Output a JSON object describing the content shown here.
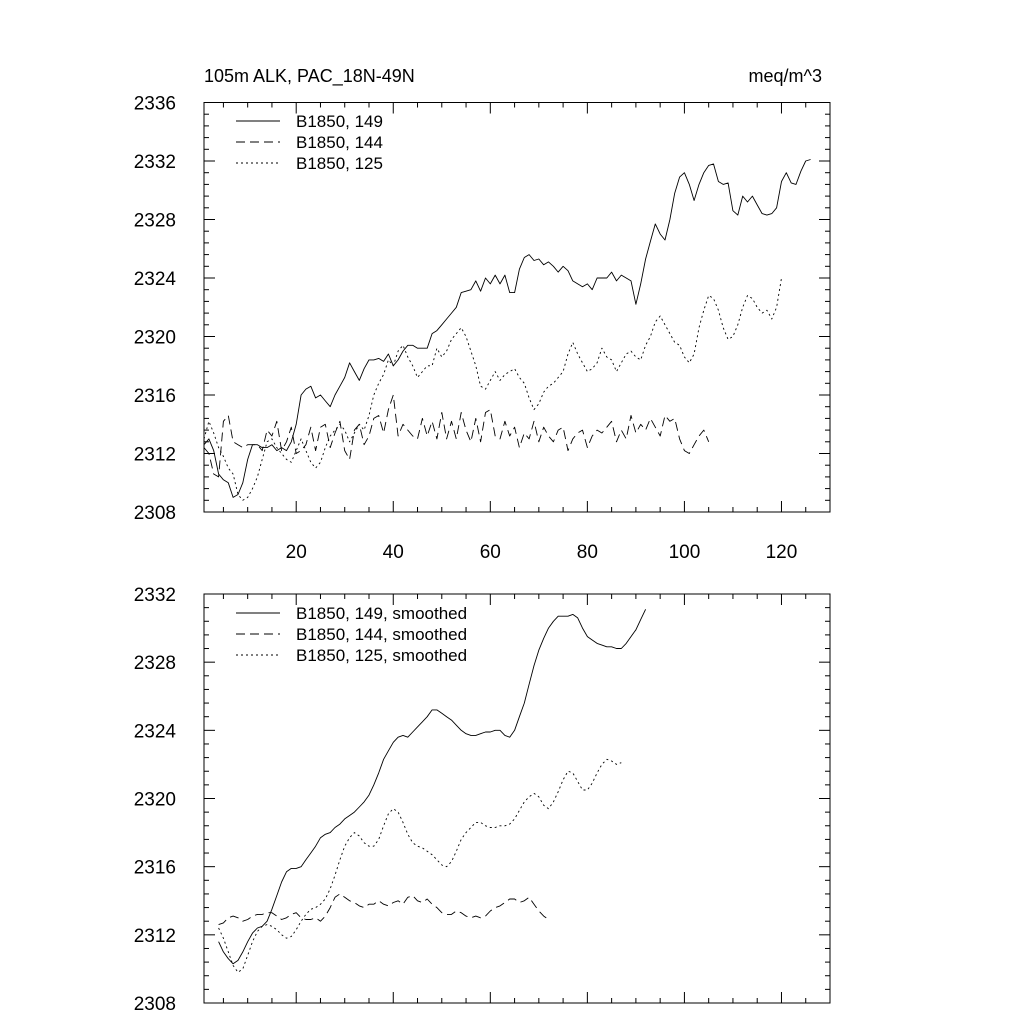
{
  "chart_data": [
    {
      "type": "line",
      "title_left": "105m ALK, PAC_18N-49N",
      "title_right": "meq/m^3",
      "xlabel": "",
      "ylabel": "",
      "xlim": [
        1,
        130
      ],
      "ylim": [
        2308,
        2336
      ],
      "x_ticks": [
        20,
        40,
        60,
        80,
        100,
        120
      ],
      "x_tick_labels": [
        "20",
        "40",
        "60",
        "80",
        "100",
        "120"
      ],
      "y_ticks": [
        2308,
        2312,
        2316,
        2320,
        2324,
        2328,
        2332,
        2336
      ],
      "y_tick_labels": [
        "2308",
        "2312",
        "2316",
        "2320",
        "2324",
        "2328",
        "2332",
        "2336"
      ],
      "legend_position": "top-left",
      "series": [
        {
          "name": "B1850, 149",
          "style": "solid",
          "x_start": 1,
          "values": [
            2312.6,
            2313.0,
            2312.2,
            2310.6,
            2310.2,
            2310.0,
            2309.0,
            2309.2,
            2310.0,
            2311.6,
            2312.6,
            2312.6,
            2312.4,
            2312.4,
            2312.6,
            2312.2,
            2312.4,
            2312.2,
            2312.8,
            2314.0,
            2316.0,
            2316.4,
            2316.6,
            2315.8,
            2316.0,
            2315.6,
            2315.2,
            2316.0,
            2316.6,
            2317.2,
            2318.2,
            2317.6,
            2317.0,
            2317.8,
            2318.4,
            2318.4,
            2318.5,
            2318.3,
            2318.8,
            2318.0,
            2318.4,
            2319.0,
            2319.4,
            2319.4,
            2319.2,
            2319.2,
            2319.2,
            2320.2,
            2320.4,
            2320.8,
            2321.2,
            2321.6,
            2322.0,
            2323.0,
            2323.1,
            2323.2,
            2323.8,
            2323.1,
            2324.0,
            2323.6,
            2324.2,
            2323.6,
            2324.2,
            2323.0,
            2323.0,
            2324.6,
            2325.4,
            2325.6,
            2325.2,
            2325.3,
            2324.9,
            2325.1,
            2324.8,
            2324.4,
            2324.8,
            2324.5,
            2323.8,
            2323.6,
            2323.4,
            2323.6,
            2323.2,
            2324.0,
            2324.0,
            2324.0,
            2324.4,
            2323.8,
            2324.2,
            2324.0,
            2323.8,
            2322.2,
            2323.6,
            2325.3,
            2326.5,
            2327.7,
            2327.0,
            2326.6,
            2328.0,
            2329.8,
            2330.9,
            2331.2,
            2330.4,
            2329.3,
            2330.4,
            2331.2,
            2331.7,
            2331.8,
            2330.6,
            2330.4,
            2330.5,
            2328.6,
            2328.3,
            2329.6,
            2329.2,
            2329.6,
            2329.0,
            2328.4,
            2328.3,
            2328.4,
            2328.8,
            2330.6,
            2331.2,
            2330.5,
            2330.4,
            2331.3,
            2332.0,
            2332.1
          ]
        },
        {
          "name": "B1850, 144",
          "style": "dashed",
          "x_start": 1,
          "values": [
            2312.4,
            2312.0,
            2310.6,
            2310.4,
            2314.2,
            2314.6,
            2312.8,
            2312.6,
            2312.4,
            2312.6,
            2312.6,
            2312.6,
            2312.2,
            2313.6,
            2313.2,
            2314.2,
            2312.2,
            2312.8,
            2313.8,
            2312.0,
            2312.2,
            2312.6,
            2313.8,
            2312.2,
            2313.8,
            2314.0,
            2312.4,
            2313.4,
            2314.2,
            2312.2,
            2311.6,
            2313.6,
            2314.0,
            2312.6,
            2313.2,
            2314.4,
            2314.6,
            2313.4,
            2315.0,
            2316.0,
            2313.2,
            2314.0,
            2313.6,
            2313.2,
            2313.0,
            2314.4,
            2313.2,
            2314.2,
            2313.0,
            2314.8,
            2313.0,
            2314.2,
            2313.0,
            2314.8,
            2313.6,
            2312.8,
            2314.4,
            2312.8,
            2314.8,
            2315.0,
            2313.2,
            2313.0,
            2314.2,
            2313.2,
            2313.8,
            2312.4,
            2313.4,
            2313.0,
            2314.2,
            2312.8,
            2313.8,
            2313.2,
            2312.8,
            2313.6,
            2313.8,
            2312.2,
            2313.0,
            2313.4,
            2313.6,
            2312.4,
            2313.2,
            2313.6,
            2313.4,
            2313.8,
            2314.2,
            2312.8,
            2313.6,
            2313.0,
            2314.6,
            2313.4,
            2314.0,
            2313.6,
            2314.4,
            2313.8,
            2313.2,
            2314.6,
            2314.2,
            2314.4,
            2313.0,
            2312.2,
            2312.0,
            2312.6,
            2313.2,
            2313.6,
            2312.8
          ]
        },
        {
          "name": "B1850, 125",
          "style": "dotted",
          "x_start": 1,
          "values": [
            2313.0,
            2314.2,
            2313.4,
            2312.4,
            2311.8,
            2311.0,
            2310.6,
            2309.2,
            2308.8,
            2309.0,
            2309.6,
            2310.4,
            2311.6,
            2312.8,
            2313.0,
            2312.4,
            2312.0,
            2311.6,
            2311.4,
            2312.2,
            2313.0,
            2312.2,
            2311.4,
            2311.0,
            2311.4,
            2312.4,
            2313.2,
            2313.6,
            2314.0,
            2313.6,
            2312.8,
            2313.4,
            2314.0,
            2313.6,
            2314.6,
            2316.0,
            2316.8,
            2317.4,
            2318.4,
            2318.0,
            2319.0,
            2319.4,
            2318.6,
            2318.0,
            2317.2,
            2317.6,
            2318.0,
            2318.0,
            2319.2,
            2318.6,
            2319.0,
            2319.8,
            2320.2,
            2320.6,
            2320.0,
            2319.0,
            2318.0,
            2316.6,
            2316.4,
            2317.0,
            2317.6,
            2317.0,
            2317.4,
            2317.6,
            2317.8,
            2317.2,
            2316.8,
            2315.8,
            2315.0,
            2315.4,
            2316.2,
            2316.6,
            2316.8,
            2317.2,
            2317.6,
            2318.8,
            2319.6,
            2318.8,
            2318.2,
            2317.6,
            2317.8,
            2318.2,
            2319.2,
            2318.6,
            2318.4,
            2317.6,
            2318.2,
            2318.8,
            2319.0,
            2318.6,
            2318.4,
            2319.4,
            2320.0,
            2321.0,
            2321.4,
            2320.8,
            2320.2,
            2319.6,
            2319.4,
            2318.6,
            2318.2,
            2318.8,
            2320.6,
            2321.8,
            2322.8,
            2322.6,
            2321.8,
            2320.6,
            2319.8,
            2320.0,
            2320.8,
            2322.0,
            2322.8,
            2322.6,
            2322.0,
            2321.6,
            2321.8,
            2321.2,
            2322.0,
            2324.0
          ]
        }
      ]
    },
    {
      "type": "line",
      "xlim": [
        1,
        130
      ],
      "ylim": [
        2308,
        2332
      ],
      "x_ticks": [
        20,
        40,
        60,
        80,
        100,
        120
      ],
      "x_tick_labels": [],
      "y_ticks": [
        2308,
        2312,
        2316,
        2320,
        2324,
        2328,
        2332
      ],
      "y_tick_labels": [
        "2308",
        "2312",
        "2316",
        "2320",
        "2324",
        "2328",
        "2332"
      ],
      "legend_position": "top-left",
      "series": [
        {
          "name": "B1850, 149, smoothed",
          "style": "solid",
          "x_start": 4,
          "values": [
            2311.6,
            2311.0,
            2310.6,
            2310.3,
            2310.5,
            2311.0,
            2311.6,
            2312.1,
            2312.4,
            2312.5,
            2312.8,
            2313.5,
            2314.3,
            2315.1,
            2315.7,
            2315.9,
            2315.9,
            2316.0,
            2316.4,
            2316.8,
            2317.2,
            2317.7,
            2317.9,
            2318.0,
            2318.3,
            2318.5,
            2318.8,
            2319.0,
            2319.2,
            2319.5,
            2319.8,
            2320.2,
            2320.8,
            2321.5,
            2322.3,
            2322.8,
            2323.3,
            2323.6,
            2323.7,
            2323.6,
            2323.9,
            2324.2,
            2324.5,
            2324.8,
            2325.2,
            2325.2,
            2325.0,
            2324.8,
            2324.6,
            2324.3,
            2324.0,
            2323.8,
            2323.7,
            2323.7,
            2323.8,
            2323.9,
            2323.9,
            2324.0,
            2324.0,
            2323.7,
            2323.6,
            2324.0,
            2324.8,
            2325.6,
            2326.7,
            2327.8,
            2328.7,
            2329.4,
            2330.0,
            2330.4,
            2330.7,
            2330.7,
            2330.7,
            2330.8,
            2330.6,
            2330.0,
            2329.5,
            2329.3,
            2329.1,
            2329.0,
            2328.9,
            2328.9,
            2328.8,
            2328.8,
            2329.1,
            2329.5,
            2329.9,
            2330.5,
            2331.1
          ]
        },
        {
          "name": "B1850, 144, smoothed",
          "style": "dashed",
          "x_start": 4,
          "values": [
            2312.6,
            2312.7,
            2313.0,
            2313.1,
            2313.0,
            2312.8,
            2312.9,
            2313.1,
            2313.2,
            2313.2,
            2313.3,
            2313.3,
            2313.1,
            2312.9,
            2313.0,
            2313.2,
            2313.3,
            2313.0,
            2312.9,
            2312.9,
            2313.0,
            2312.8,
            2313.1,
            2313.6,
            2314.2,
            2314.4,
            2314.2,
            2314.0,
            2313.9,
            2313.7,
            2313.6,
            2313.8,
            2313.8,
            2314.0,
            2313.8,
            2313.7,
            2313.9,
            2314.0,
            2313.8,
            2314.2,
            2314.3,
            2314.0,
            2313.9,
            2314.1,
            2313.8,
            2313.6,
            2313.3,
            2313.2,
            2313.2,
            2313.4,
            2313.3,
            2313.1,
            2313.0,
            2313.1,
            2313.0,
            2313.1,
            2313.4,
            2313.6,
            2313.7,
            2313.9,
            2314.1,
            2314.1,
            2313.9,
            2314.0,
            2314.2,
            2313.8,
            2313.4,
            2313.1,
            2312.9
          ]
        },
        {
          "name": "B1850, 125, smoothed",
          "style": "dotted",
          "x_start": 4,
          "values": [
            2312.4,
            2311.8,
            2311.0,
            2310.2,
            2309.8,
            2310.0,
            2310.8,
            2311.6,
            2312.2,
            2312.5,
            2312.6,
            2312.5,
            2312.3,
            2312.0,
            2311.8,
            2311.9,
            2312.3,
            2312.8,
            2313.2,
            2313.5,
            2313.6,
            2313.8,
            2314.1,
            2314.7,
            2315.5,
            2316.4,
            2317.2,
            2317.7,
            2318.0,
            2317.8,
            2317.4,
            2317.2,
            2317.2,
            2317.6,
            2318.4,
            2319.1,
            2319.4,
            2319.2,
            2318.6,
            2317.9,
            2317.4,
            2317.2,
            2317.1,
            2316.9,
            2316.7,
            2316.4,
            2316.1,
            2316.0,
            2316.3,
            2316.9,
            2317.6,
            2318.0,
            2318.3,
            2318.6,
            2318.6,
            2318.4,
            2318.3,
            2318.3,
            2318.4,
            2318.4,
            2318.5,
            2318.8,
            2319.3,
            2319.8,
            2320.1,
            2320.3,
            2320.1,
            2319.6,
            2319.4,
            2319.8,
            2320.4,
            2321.1,
            2321.6,
            2321.5,
            2321.0,
            2320.5,
            2320.5,
            2320.9,
            2321.5,
            2322.0,
            2322.3,
            2322.2,
            2322.0,
            2322.1
          ]
        }
      ]
    }
  ]
}
